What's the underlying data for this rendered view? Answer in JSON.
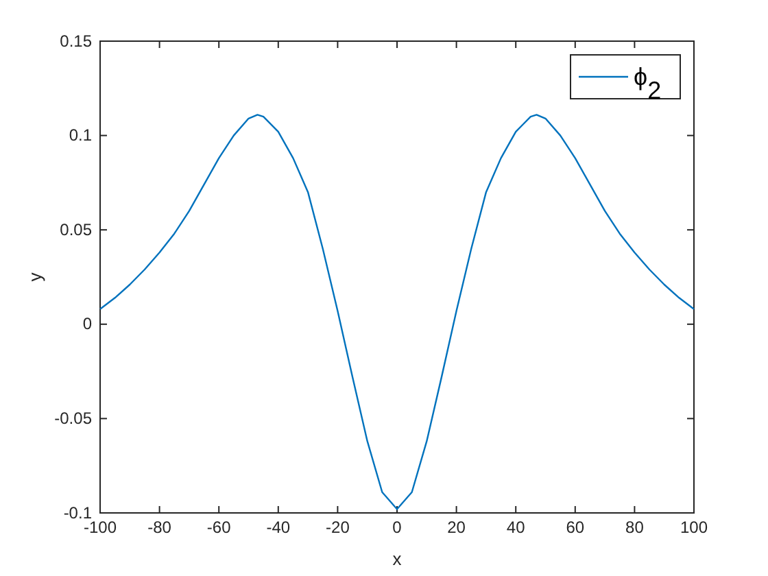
{
  "chart_data": {
    "type": "line",
    "xlabel": "x",
    "ylabel": "y",
    "x": [
      -100,
      -95,
      -90,
      -85,
      -80,
      -75,
      -70,
      -65,
      -60,
      -55,
      -50,
      -47,
      -45,
      -40,
      -35,
      -30,
      -25,
      -20,
      -15,
      -10,
      -5,
      0,
      5,
      10,
      15,
      20,
      25,
      30,
      35,
      40,
      45,
      47,
      50,
      55,
      60,
      65,
      70,
      75,
      80,
      85,
      90,
      95,
      100
    ],
    "series": [
      {
        "name": "ϕ$_{2}$",
        "color": "#0072bd",
        "values": [
          0.008,
          0.014,
          0.021,
          0.029,
          0.038,
          0.048,
          0.06,
          0.074,
          0.088,
          0.1,
          0.109,
          0.111,
          0.11,
          0.102,
          0.088,
          0.07,
          0.04,
          0.007,
          -0.028,
          -0.062,
          -0.089,
          -0.098,
          -0.089,
          -0.062,
          -0.028,
          0.007,
          0.04,
          0.07,
          0.088,
          0.102,
          0.11,
          0.111,
          0.109,
          0.1,
          0.088,
          0.074,
          0.06,
          0.048,
          0.038,
          0.029,
          0.021,
          0.014,
          0.008
        ]
      }
    ],
    "xlim": [
      -100,
      100
    ],
    "ylim": [
      -0.1,
      0.15
    ],
    "xticks": [
      -100,
      -80,
      -60,
      -40,
      -20,
      0,
      20,
      40,
      60,
      80,
      100
    ],
    "yticks": [
      -0.1,
      -0.05,
      0,
      0.05,
      0.1,
      0.15
    ],
    "legend": "top right",
    "grid": false
  }
}
